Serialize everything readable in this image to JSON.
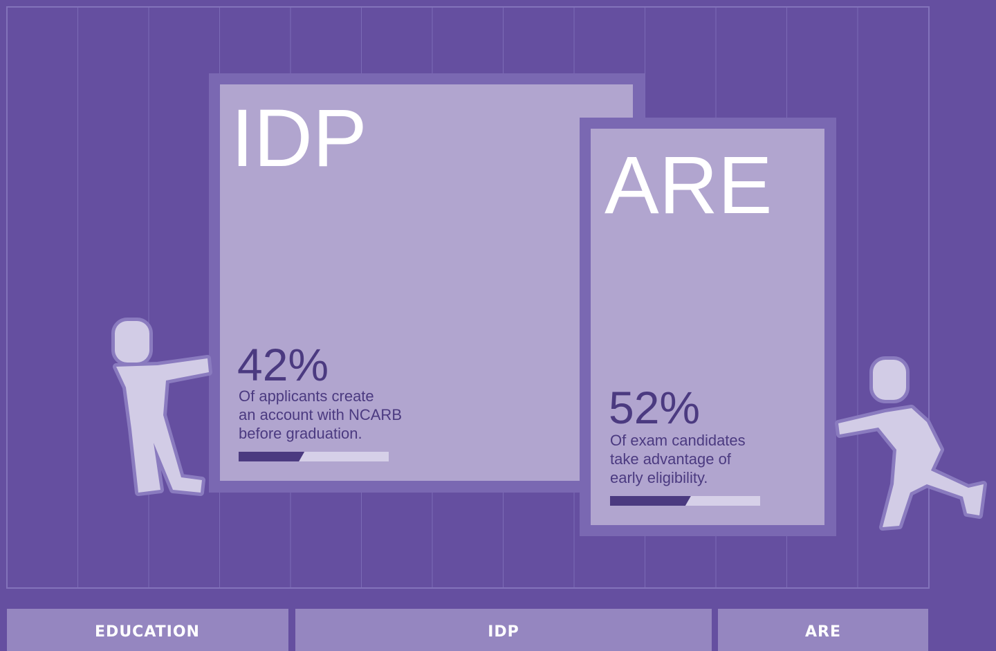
{
  "cards": [
    {
      "title": "IDP",
      "value": 42,
      "value_label": "42%",
      "lines": [
        "Of applicants create",
        "an account with NCARB",
        "before graduation."
      ]
    },
    {
      "title": "ARE",
      "value": 52,
      "value_label": "52%",
      "lines": [
        "Of exam candidates",
        "take advantage of",
        "early eligibility."
      ]
    }
  ],
  "footer": [
    "EDUCATION",
    "IDP",
    "ARE"
  ]
}
